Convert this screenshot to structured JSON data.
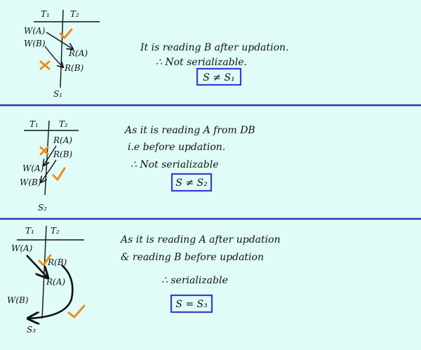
{
  "panels": [
    {
      "schedule": "S1",
      "t1": "T₁",
      "t2": "T₂",
      "ops": [
        "W(A)",
        "W(B)",
        "R(A)",
        "R(B)"
      ],
      "label": "S₁",
      "lines": [
        "It is reading B after updation.",
        "∴ Not serializable."
      ],
      "result": "S ≠ S₁"
    },
    {
      "schedule": "S2",
      "t1": "T₁",
      "t2": "T₂",
      "ops": [
        "R(A)",
        "R(B)",
        "W(A)",
        "W(B)"
      ],
      "label": "S₂",
      "lines": [
        "As it is reading A from DB",
        "i.e before updation.",
        "∴ Not serializable"
      ],
      "result": "S ≠ S₂"
    },
    {
      "schedule": "S3",
      "t1": "T₁",
      "t2": "T₂",
      "ops": [
        "W(A)",
        "R(B)",
        "R(A)",
        "W(B)"
      ],
      "label": "S₃",
      "lines": [
        "As it is reading A after updation",
        "& reading B before updation",
        "∴ serializable"
      ],
      "result": "S = S₃"
    }
  ],
  "colors": {
    "background": "#dffcf8",
    "separator": "#3030b8",
    "box": "#3b3bd0",
    "check": "#f08a1c",
    "cross": "#f08a1c"
  }
}
